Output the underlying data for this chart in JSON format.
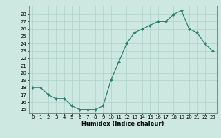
{
  "x": [
    0,
    1,
    2,
    3,
    4,
    5,
    6,
    7,
    8,
    9,
    10,
    11,
    12,
    13,
    14,
    15,
    16,
    17,
    18,
    19,
    20,
    21,
    22,
    23
  ],
  "y": [
    18,
    18,
    17,
    16.5,
    16.5,
    15.5,
    15,
    15,
    15,
    15.5,
    19,
    21.5,
    24,
    25.5,
    26,
    26.5,
    27,
    27,
    28,
    28.5,
    26,
    25.5,
    24,
    23
  ],
  "line_color": "#2e7d6e",
  "marker_color": "#2e7d6e",
  "bg_color": "#cce8e0",
  "grid_color": "#aed0c8",
  "xlabel": "Humidex (Indice chaleur)",
  "xlabel_fontsize": 6,
  "tick_fontsize": 5,
  "ylim": [
    14.5,
    29.2
  ],
  "xlim": [
    -0.5,
    23.5
  ],
  "yticks": [
    15,
    16,
    17,
    18,
    19,
    20,
    21,
    22,
    23,
    24,
    25,
    26,
    27,
    28
  ],
  "xticks": [
    0,
    1,
    2,
    3,
    4,
    5,
    6,
    7,
    8,
    9,
    10,
    11,
    12,
    13,
    14,
    15,
    16,
    17,
    18,
    19,
    20,
    21,
    22,
    23
  ],
  "marker_size": 2,
  "line_width": 0.9
}
